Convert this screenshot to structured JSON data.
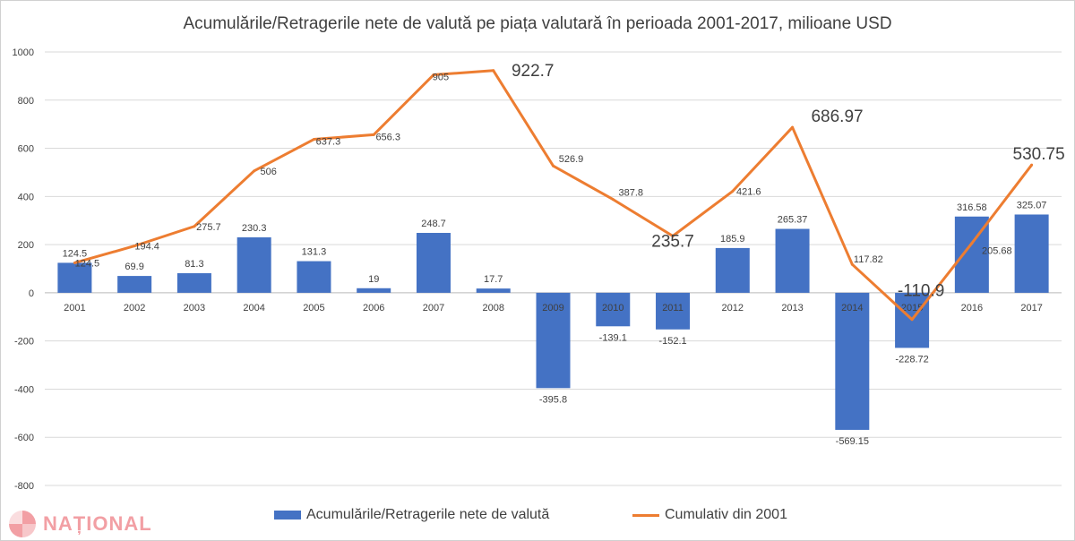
{
  "chart_data": {
    "type": "bar",
    "title": "Acumulările/Retragerile  nete de valută pe piața valutară în perioada 2001-2017, milioane USD",
    "categories": [
      "2001",
      "2002",
      "2003",
      "2004",
      "2005",
      "2006",
      "2007",
      "2008",
      "2009",
      "2010",
      "2011",
      "2012",
      "2013",
      "2014",
      "2015",
      "2016",
      "2017"
    ],
    "ylim": [
      -800,
      1000
    ],
    "yticks": [
      "1000",
      "800",
      "600",
      "400",
      "200",
      "0",
      "-200",
      "-400",
      "-600",
      "-800"
    ],
    "grid": true,
    "legend_position": "bottom",
    "series": [
      {
        "name": "Acumulările/Retragerile nete de valută",
        "kind": "bar",
        "color": "#4472c4",
        "values": [
          124.5,
          69.9,
          81.3,
          230.3,
          131.3,
          19,
          248.7,
          17.7,
          -395.8,
          -139.1,
          -152.1,
          185.9,
          265.37,
          -569.15,
          -228.72,
          316.58,
          325.07
        ],
        "labels": [
          "124.5",
          "69.9",
          "81.3",
          "230.3",
          "131.3",
          "19",
          "248.7",
          "17.7",
          "-395.8",
          "-139.1",
          "-152.1",
          "185.9",
          "265.37",
          "-569.15",
          "-228.72",
          "316.58",
          "325.07"
        ]
      },
      {
        "name": "Cumulativ din 2001",
        "kind": "line",
        "color": "#ed7d31",
        "values": [
          124.5,
          194.4,
          275.7,
          506,
          637.3,
          656.3,
          905,
          922.7,
          526.9,
          387.8,
          235.7,
          421.6,
          686.97,
          117.82,
          -110.9,
          205.68,
          530.75
        ],
        "labels": [
          "124.5",
          "194.4",
          "275.7",
          "506",
          "637.3",
          "656.3",
          "905",
          "922.7",
          "526.9",
          "387.8",
          "235.7",
          "421.6",
          "686.97",
          "117.82",
          "-110.9",
          "205.68",
          "530.75"
        ]
      }
    ]
  },
  "watermark": "NAȚIONAL"
}
